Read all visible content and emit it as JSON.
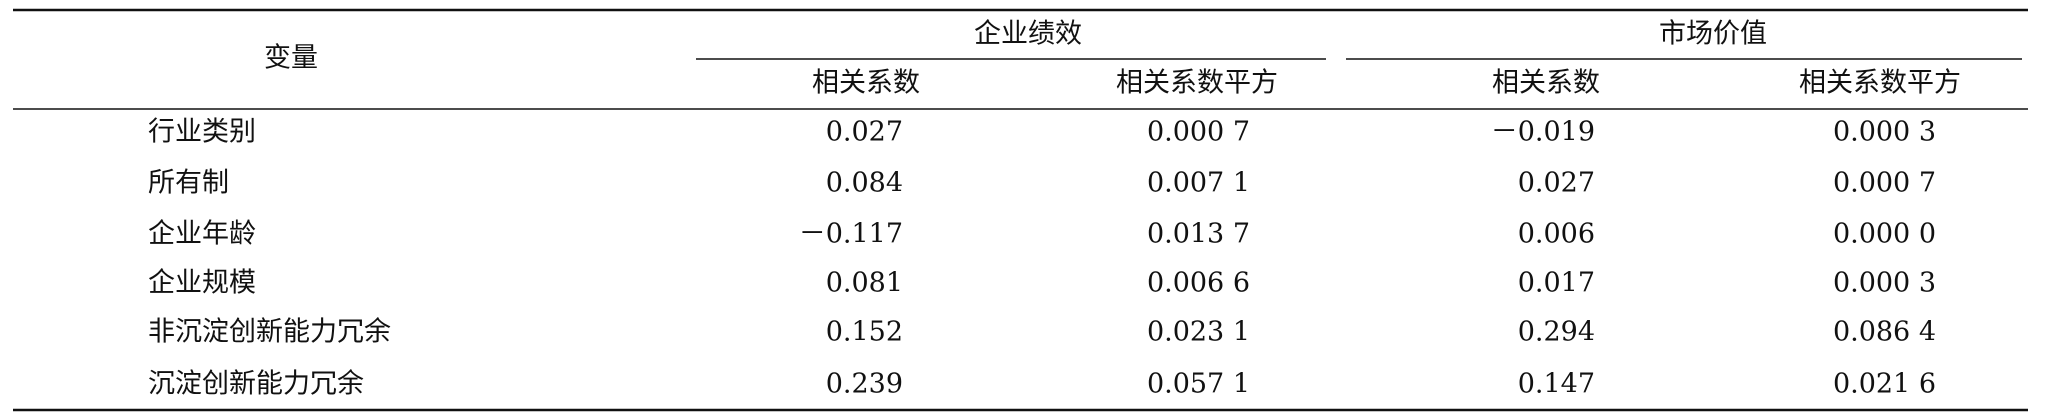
{
  "table": {
    "header": {
      "variable": "变量",
      "groups": [
        {
          "title": "企业绩效",
          "columns": [
            "相关系数",
            "相关系数平方"
          ]
        },
        {
          "title": "市场价值",
          "columns": [
            "相关系数",
            "相关系数平方"
          ]
        }
      ]
    },
    "rows": [
      {
        "label": "行业类别",
        "values": [
          "0.027",
          "0.000 7",
          "－0.019",
          "0.000 3"
        ]
      },
      {
        "label": "所有制",
        "values": [
          "0.084",
          "0.007 1",
          "0.027",
          "0.000 7"
        ]
      },
      {
        "label": "企业年龄",
        "values": [
          "－0.117",
          "0.013 7",
          "0.006",
          "0.000 0"
        ]
      },
      {
        "label": "企业规模",
        "values": [
          "0.081",
          "0.006 6",
          "0.017",
          "0.000 3"
        ]
      },
      {
        "label": "非沉淀创新能力冗余",
        "values": [
          "0.152",
          "0.023 1",
          "0.294",
          "0.086 4"
        ]
      },
      {
        "label": "沉淀创新能力冗余",
        "values": [
          "0.239",
          "0.057 1",
          "0.147",
          "0.021 6"
        ]
      }
    ]
  }
}
